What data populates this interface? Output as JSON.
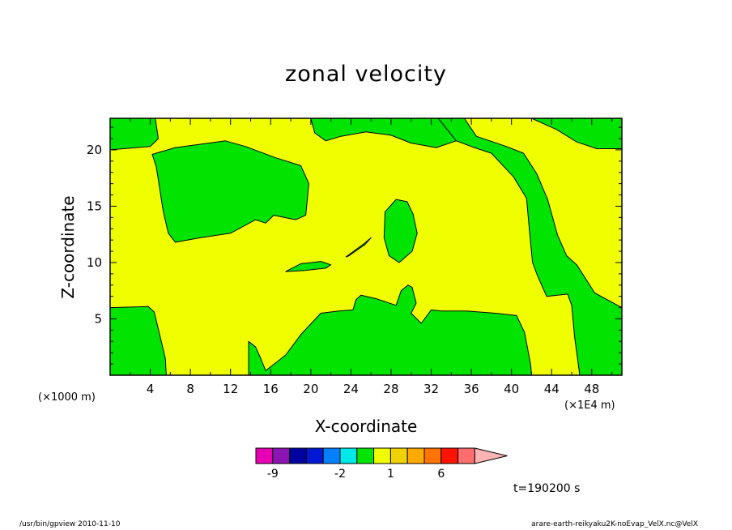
{
  "chart_data": {
    "type": "heatmap",
    "title": "zonal velocity",
    "xlabel": "X-coordinate",
    "ylabel": "Z-coordinate",
    "x_unit_left": "(×1000 m)",
    "x_unit_right": "(×1E4 m)",
    "x_ticks": [
      "4",
      "8",
      "12",
      "16",
      "20",
      "24",
      "28",
      "32",
      "36",
      "40",
      "44",
      "48"
    ],
    "y_ticks": [
      "5",
      "10",
      "15",
      "20"
    ],
    "xlim": [
      0,
      51
    ],
    "ylim": [
      0,
      22.8
    ],
    "background_field_color": "#f0ff00",
    "region_color": "#00e400",
    "regions": [
      [
        [
          0,
          20
        ],
        [
          4,
          20.3
        ],
        [
          4.8,
          21
        ],
        [
          4.5,
          22.8
        ],
        [
          0,
          22.8
        ]
      ],
      [
        [
          4.2,
          19.6
        ],
        [
          6.5,
          20.2
        ],
        [
          11.5,
          20.8
        ],
        [
          13.5,
          20.3
        ],
        [
          16.5,
          19.3
        ],
        [
          19,
          18.6
        ],
        [
          19.8,
          17
        ],
        [
          19.5,
          14.2
        ],
        [
          18.5,
          13.8
        ],
        [
          16.3,
          14.2
        ],
        [
          15.5,
          13.5
        ],
        [
          14.5,
          13.8
        ],
        [
          12,
          12.6
        ],
        [
          9,
          12.2
        ],
        [
          6.5,
          11.8
        ],
        [
          5.8,
          12.6
        ],
        [
          5.3,
          14.5
        ],
        [
          4.6,
          18.5
        ]
      ],
      [
        [
          20,
          22.8
        ],
        [
          20.4,
          21.5
        ],
        [
          21.5,
          20.8
        ],
        [
          23,
          21.2
        ],
        [
          25.5,
          21.6
        ],
        [
          28,
          21.3
        ],
        [
          30,
          20.6
        ],
        [
          32.5,
          20.2
        ],
        [
          34.5,
          20.8
        ],
        [
          35.3,
          22.8
        ]
      ],
      [
        [
          38.5,
          22.8
        ],
        [
          42,
          22.8
        ],
        [
          44.5,
          21.8
        ],
        [
          46.5,
          20.7
        ],
        [
          48.5,
          20.1
        ],
        [
          51,
          20.1
        ],
        [
          51,
          22.8
        ]
      ],
      [
        [
          32.7,
          22.8
        ],
        [
          35.3,
          22.8
        ],
        [
          36.5,
          21.2
        ],
        [
          39.5,
          20.3
        ],
        [
          41.2,
          19.7
        ],
        [
          42.5,
          17.9
        ],
        [
          43.6,
          15.6
        ],
        [
          44.6,
          12.4
        ],
        [
          45.5,
          10.6
        ],
        [
          46.5,
          9.8
        ],
        [
          48.3,
          7.3
        ],
        [
          51,
          6
        ],
        [
          51,
          0
        ],
        [
          46.8,
          0
        ],
        [
          46.3,
          3.3
        ],
        [
          46,
          6.2
        ],
        [
          45.6,
          7.2
        ],
        [
          43.5,
          7
        ],
        [
          42.6,
          8.8
        ],
        [
          42.1,
          10
        ],
        [
          41.8,
          12.7
        ],
        [
          41.5,
          15.7
        ],
        [
          40.2,
          17.6
        ],
        [
          38,
          19.7
        ],
        [
          36.3,
          20.2
        ],
        [
          34.5,
          20.8
        ]
      ],
      [
        [
          0,
          6
        ],
        [
          3.8,
          6.1
        ],
        [
          4.4,
          5.6
        ],
        [
          5.5,
          1.5
        ],
        [
          5.6,
          0
        ],
        [
          0,
          0
        ]
      ],
      [
        [
          27.4,
          14.5
        ],
        [
          28.5,
          15.6
        ],
        [
          29.6,
          15.4
        ],
        [
          30.2,
          14.3
        ],
        [
          30.6,
          12.6
        ],
        [
          30.1,
          11
        ],
        [
          28.8,
          10
        ],
        [
          27.8,
          10.6
        ],
        [
          27.3,
          12.2
        ]
      ],
      [
        [
          17.5,
          9.2
        ],
        [
          19,
          9.9
        ],
        [
          21,
          10.1
        ],
        [
          22,
          9.8
        ],
        [
          21.5,
          9.5
        ],
        [
          19.4,
          9.3
        ]
      ],
      [
        [
          23.5,
          10.5
        ],
        [
          25.2,
          11.6
        ],
        [
          26,
          12.2
        ],
        [
          25.4,
          11.6
        ],
        [
          23.8,
          10.6
        ]
      ],
      [
        [
          13.8,
          0
        ],
        [
          13.8,
          3
        ],
        [
          14.5,
          2.5
        ],
        [
          15,
          1.5
        ],
        [
          15.5,
          0.4
        ],
        [
          17.5,
          1.8
        ],
        [
          19,
          3.6
        ],
        [
          21,
          5.5
        ],
        [
          22.8,
          5.7
        ],
        [
          24.2,
          5.8
        ],
        [
          24.5,
          6.7
        ],
        [
          25,
          7.1
        ],
        [
          26.5,
          6.8
        ],
        [
          28.5,
          6.2
        ],
        [
          29,
          7.5
        ],
        [
          29.7,
          8
        ],
        [
          30.1,
          7.8
        ],
        [
          30.5,
          6.4
        ],
        [
          30,
          5.5
        ],
        [
          31,
          4.6
        ],
        [
          32,
          5.8
        ],
        [
          33,
          5.7
        ],
        [
          35.5,
          5.7
        ],
        [
          38.4,
          5.5
        ],
        [
          40.5,
          5.3
        ],
        [
          41.3,
          3.8
        ],
        [
          41.9,
          1
        ],
        [
          42,
          0
        ]
      ]
    ],
    "colorbar": {
      "colors": [
        "#e800b4",
        "#8c14b4",
        "#0000a0",
        "#0018d4",
        "#0080ff",
        "#00e8e8",
        "#00e400",
        "#f0ff00",
        "#f0d200",
        "#ffaa00",
        "#ff7300",
        "#ff1400",
        "#ff6e6e",
        "#ffb4b4"
      ],
      "labels": [
        {
          "text": "-9",
          "after_box": 1
        },
        {
          "text": "-2",
          "after_box": 5
        },
        {
          "text": "1",
          "after_box": 8
        },
        {
          "text": "6",
          "after_box": 11
        }
      ]
    },
    "time_label": "t=190200 s"
  },
  "footer": {
    "left": "/usr/bin/gpview   2010-11-10",
    "right": "arare-earth-reikyaku2K-noEvap_VelX.nc@VelX"
  }
}
